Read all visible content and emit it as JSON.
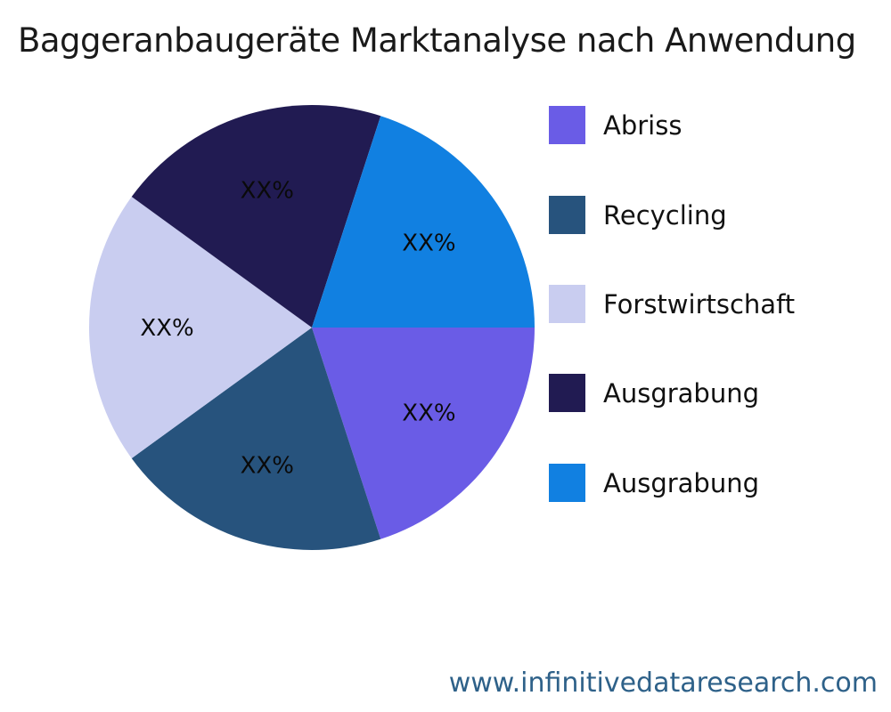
{
  "title": "Baggeranbaugeräte Marktanalyse nach Anwendung",
  "footer": {
    "url": "www.infinitivedataresearch.com"
  },
  "chart_data": {
    "type": "pie",
    "title": "Baggeranbaugeräte Marktanalyse nach Anwendung",
    "start_angle_deg": 0,
    "direction": "clockwise",
    "legend_position": "right",
    "value_label_placeholder": "XX%",
    "slices": [
      {
        "label": "Abriss",
        "value": 20,
        "display": "XX%",
        "color": "#6A5CE6"
      },
      {
        "label": "Recycling",
        "value": 20,
        "display": "XX%",
        "color": "#27537D"
      },
      {
        "label": "Forstwirtschaft",
        "value": 20,
        "display": "XX%",
        "color": "#C9CDF0"
      },
      {
        "label": "Ausgrabung",
        "value": 20,
        "display": "XX%",
        "color": "#211B52"
      },
      {
        "label": "Ausgrabung",
        "value": 20,
        "display": "XX%",
        "color": "#1180E1"
      }
    ]
  }
}
